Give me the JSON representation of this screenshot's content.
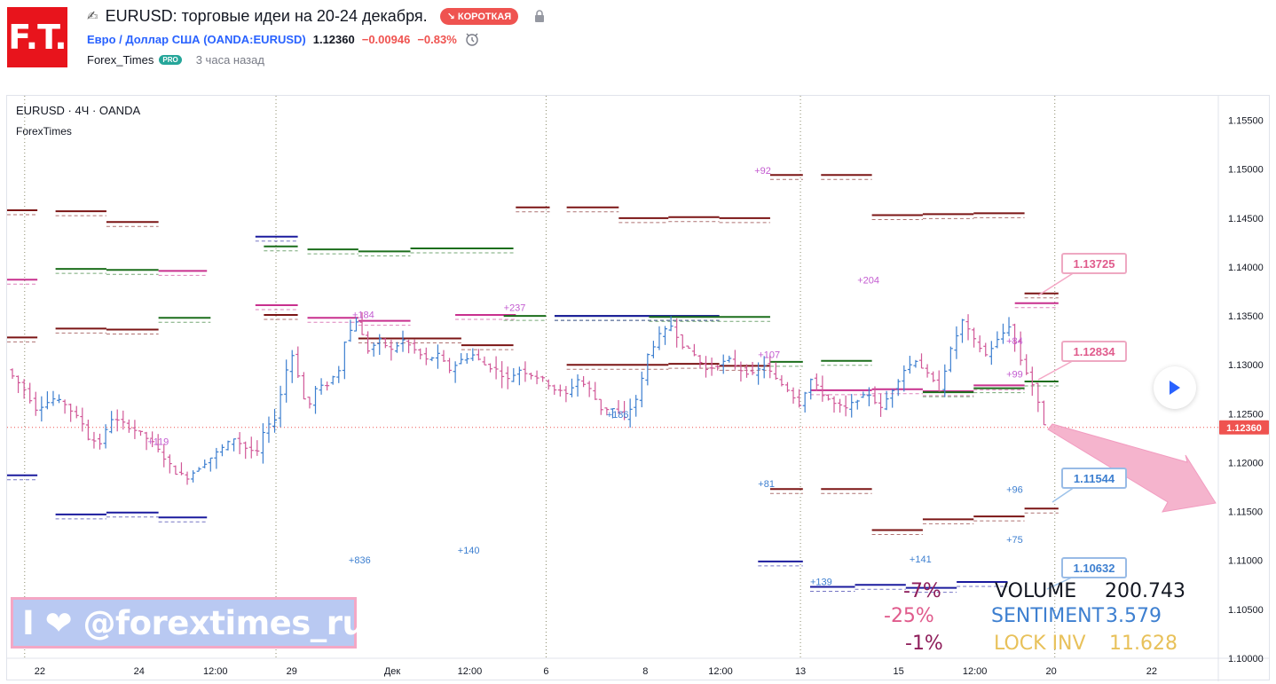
{
  "header": {
    "logo_text": "F.T.",
    "title": "EURUSD: торговые идеи на 20-24 декабря.",
    "badge": "↘ КОРОТКАЯ",
    "symbol_name": "Евро / Доллар США",
    "symbol_code": "(OANDA:EURUSD)",
    "price": "1.12360",
    "change": "−0.00946",
    "change_pct": "−0.83%",
    "author": "Forex_Times",
    "author_badge": "PRO",
    "time_ago": "3 часа назад"
  },
  "chart_header": {
    "symbol": "EURUSD · 4Ч · OANDA",
    "indicator": "ForexTimes"
  },
  "banner_text": "I ❤ @forextimes_ru",
  "stats": {
    "volume_pct": "-7%",
    "volume_label": "VOLUME",
    "volume_value": "200.743",
    "sentiment_pct": "-25%",
    "sentiment_label": "SENTIMENT",
    "sentiment_value": "3.579",
    "lock_pct": "-1%",
    "lock_label": "LOCK INV",
    "lock_value": "11.628"
  },
  "callouts": [
    {
      "text": "1.13725",
      "color": "#e05b8c"
    },
    {
      "text": "1.12834",
      "color": "#e05b8c"
    },
    {
      "text": "1.11544",
      "color": "#3d7fd0"
    },
    {
      "text": "1.10632",
      "color": "#3d7fd0"
    }
  ],
  "colors": {
    "up": "#3d7fd0",
    "down": "#d15898",
    "level_darkred": "#7b1515",
    "level_green": "#1b6e1b",
    "level_navy": "#1b1b9e",
    "level_pink": "#c8308e",
    "arrow": "#f4a7c5",
    "price_tag": "#ef5350"
  },
  "chart_data": {
    "type": "ohlc",
    "symbol": "EURUSD",
    "timeframe": "4Ч",
    "ylim": [
      1.1,
      1.1575
    ],
    "y_ticks": [
      "1.15500",
      "1.15000",
      "1.14500",
      "1.14000",
      "1.13500",
      "1.13000",
      "1.12500",
      "1.12000",
      "1.11500",
      "1.11000",
      "1.10500",
      "1.10000"
    ],
    "x_ticks": [
      "22",
      "24",
      "12:00",
      "29",
      "Дек",
      "12:00",
      "6",
      "8",
      "12:00",
      "13",
      "15",
      "12:00",
      "20",
      "22"
    ],
    "current_price": 1.1236,
    "current_price_label": "1.12360",
    "price_path": [
      [
        0,
        1.1295
      ],
      [
        3,
        1.1275
      ],
      [
        5,
        1.1255
      ],
      [
        8,
        1.1265
      ],
      [
        10,
        1.126
      ],
      [
        13,
        1.124
      ],
      [
        14,
        1.1225
      ],
      [
        16,
        1.122
      ],
      [
        18,
        1.1245
      ],
      [
        20,
        1.124
      ],
      [
        23,
        1.123
      ],
      [
        25,
        1.122
      ],
      [
        27,
        1.1205
      ],
      [
        29,
        1.119
      ],
      [
        31,
        1.1185
      ],
      [
        33,
        1.1195
      ],
      [
        35,
        1.1205
      ],
      [
        37,
        1.1215
      ],
      [
        39,
        1.1225
      ],
      [
        41,
        1.1215
      ],
      [
        43,
        1.121
      ],
      [
        44,
        1.123
      ],
      [
        46,
        1.1245
      ],
      [
        47,
        1.127
      ],
      [
        48,
        1.1295
      ],
      [
        49,
        1.131
      ],
      [
        50,
        1.129
      ],
      [
        51,
        1.1265
      ],
      [
        52,
        1.126
      ],
      [
        53,
        1.1275
      ],
      [
        55,
        1.128
      ],
      [
        57,
        1.1295
      ],
      [
        58,
        1.1325
      ],
      [
        59,
        1.1335
      ],
      [
        60,
        1.1345
      ],
      [
        61,
        1.133
      ],
      [
        62,
        1.1315
      ],
      [
        64,
        1.1325
      ],
      [
        66,
        1.1315
      ],
      [
        68,
        1.1325
      ],
      [
        70,
        1.1315
      ],
      [
        72,
        1.1305
      ],
      [
        74,
        1.131
      ],
      [
        76,
        1.1295
      ],
      [
        78,
        1.1305
      ],
      [
        80,
        1.131
      ],
      [
        82,
        1.13
      ],
      [
        84,
        1.1295
      ],
      [
        86,
        1.1285
      ],
      [
        88,
        1.1295
      ],
      [
        90,
        1.129
      ],
      [
        92,
        1.1285
      ],
      [
        94,
        1.1275
      ],
      [
        96,
        1.127
      ],
      [
        98,
        1.1285
      ],
      [
        100,
        1.1275
      ],
      [
        102,
        1.1255
      ],
      [
        104,
        1.1255
      ],
      [
        106,
        1.1245
      ],
      [
        108,
        1.1265
      ],
      [
        109,
        1.1285
      ],
      [
        110,
        1.131
      ],
      [
        112,
        1.133
      ],
      [
        114,
        1.134
      ],
      [
        116,
        1.132
      ],
      [
        118,
        1.131
      ],
      [
        120,
        1.1295
      ],
      [
        122,
        1.13
      ],
      [
        124,
        1.1305
      ],
      [
        126,
        1.1295
      ],
      [
        128,
        1.129
      ],
      [
        130,
        1.13
      ],
      [
        132,
        1.1285
      ],
      [
        134,
        1.1275
      ],
      [
        136,
        1.126
      ],
      [
        138,
        1.1285
      ],
      [
        140,
        1.127
      ],
      [
        142,
        1.126
      ],
      [
        144,
        1.1255
      ],
      [
        146,
        1.1265
      ],
      [
        148,
        1.127
      ],
      [
        150,
        1.1255
      ],
      [
        152,
        1.1275
      ],
      [
        154,
        1.1295
      ],
      [
        156,
        1.1305
      ],
      [
        158,
        1.129
      ],
      [
        160,
        1.1275
      ],
      [
        162,
        1.1315
      ],
      [
        164,
        1.1345
      ],
      [
        166,
        1.1325
      ],
      [
        168,
        1.131
      ],
      [
        170,
        1.1325
      ],
      [
        172,
        1.134
      ],
      [
        174,
        1.1305
      ],
      [
        176,
        1.128
      ],
      [
        178,
        1.124
      ]
    ],
    "annotations": [
      {
        "text": "+92",
        "x": 0.617,
        "y": 1.1495,
        "color": "#c35bd0"
      },
      {
        "text": "+204",
        "x": 0.702,
        "y": 1.1383,
        "color": "#c35bd0"
      },
      {
        "text": "+184",
        "x": 0.285,
        "y": 1.1348,
        "color": "#c35bd0"
      },
      {
        "text": "+237",
        "x": 0.41,
        "y": 1.1355,
        "color": "#c35bd0"
      },
      {
        "text": "+107",
        "x": 0.62,
        "y": 1.1307,
        "color": "#c35bd0"
      },
      {
        "text": "+84",
        "x": 0.825,
        "y": 1.1321,
        "color": "#c35bd0"
      },
      {
        "text": "+99",
        "x": 0.825,
        "y": 1.1287,
        "color": "#c35bd0"
      },
      {
        "text": "+119",
        "x": 0.116,
        "y": 1.1218,
        "color": "#c35bd0"
      },
      {
        "text": "+186",
        "x": 0.495,
        "y": 1.1246,
        "color": "#3d7fd0"
      },
      {
        "text": "+81",
        "x": 0.62,
        "y": 1.1175,
        "color": "#3d7fd0"
      },
      {
        "text": "+96",
        "x": 0.825,
        "y": 1.1169,
        "color": "#3d7fd0"
      },
      {
        "text": "+75",
        "x": 0.825,
        "y": 1.1118,
        "color": "#3d7fd0"
      },
      {
        "text": "+836",
        "x": 0.282,
        "y": 1.1097,
        "color": "#3d7fd0"
      },
      {
        "text": "+140",
        "x": 0.372,
        "y": 1.1107,
        "color": "#3d7fd0"
      },
      {
        "text": "+141",
        "x": 0.745,
        "y": 1.1098,
        "color": "#3d7fd0"
      },
      {
        "text": "+139",
        "x": 0.663,
        "y": 1.1075,
        "color": "#3d7fd0"
      }
    ],
    "levels": [
      {
        "x1": 0.0,
        "x2": 0.025,
        "y": 1.1458,
        "color": "darkred"
      },
      {
        "x1": 0.04,
        "x2": 0.082,
        "y": 1.1457,
        "color": "darkred"
      },
      {
        "x1": 0.082,
        "x2": 0.125,
        "y": 1.1446,
        "color": "darkred"
      },
      {
        "x1": 0.42,
        "x2": 0.448,
        "y": 1.1461,
        "color": "darkred"
      },
      {
        "x1": 0.462,
        "x2": 0.505,
        "y": 1.1461,
        "color": "darkred"
      },
      {
        "x1": 0.505,
        "x2": 0.546,
        "y": 1.145,
        "color": "darkred"
      },
      {
        "x1": 0.546,
        "x2": 0.588,
        "y": 1.1451,
        "color": "darkred"
      },
      {
        "x1": 0.588,
        "x2": 0.63,
        "y": 1.145,
        "color": "darkred"
      },
      {
        "x1": 0.63,
        "x2": 0.657,
        "y": 1.1494,
        "color": "darkred"
      },
      {
        "x1": 0.672,
        "x2": 0.714,
        "y": 1.1494,
        "color": "darkred"
      },
      {
        "x1": 0.714,
        "x2": 0.756,
        "y": 1.1453,
        "color": "darkred"
      },
      {
        "x1": 0.756,
        "x2": 0.798,
        "y": 1.1454,
        "color": "darkred"
      },
      {
        "x1": 0.798,
        "x2": 0.84,
        "y": 1.1455,
        "color": "darkred"
      },
      {
        "x1": 0.0,
        "x2": 0.025,
        "y": 1.1387,
        "color": "pink"
      },
      {
        "x1": 0.04,
        "x2": 0.082,
        "y": 1.1398,
        "color": "green"
      },
      {
        "x1": 0.082,
        "x2": 0.125,
        "y": 1.1397,
        "color": "green"
      },
      {
        "x1": 0.125,
        "x2": 0.165,
        "y": 1.1396,
        "color": "pink"
      },
      {
        "x1": 0.205,
        "x2": 0.24,
        "y": 1.1431,
        "color": "navy"
      },
      {
        "x1": 0.212,
        "x2": 0.24,
        "y": 1.1421,
        "color": "green"
      },
      {
        "x1": 0.248,
        "x2": 0.29,
        "y": 1.1418,
        "color": "green"
      },
      {
        "x1": 0.29,
        "x2": 0.333,
        "y": 1.1416,
        "color": "green"
      },
      {
        "x1": 0.333,
        "x2": 0.418,
        "y": 1.1419,
        "color": "green"
      },
      {
        "x1": 0.205,
        "x2": 0.24,
        "y": 1.1361,
        "color": "pink"
      },
      {
        "x1": 0.212,
        "x2": 0.24,
        "y": 1.1351,
        "color": "darkred"
      },
      {
        "x1": 0.125,
        "x2": 0.168,
        "y": 1.1348,
        "color": "green"
      },
      {
        "x1": 0.04,
        "x2": 0.082,
        "y": 1.1337,
        "color": "darkred"
      },
      {
        "x1": 0.082,
        "x2": 0.125,
        "y": 1.1336,
        "color": "darkred"
      },
      {
        "x1": 0.0,
        "x2": 0.025,
        "y": 1.1328,
        "color": "darkred"
      },
      {
        "x1": 0.248,
        "x2": 0.29,
        "y": 1.1348,
        "color": "pink"
      },
      {
        "x1": 0.29,
        "x2": 0.333,
        "y": 1.1345,
        "color": "pink"
      },
      {
        "x1": 0.37,
        "x2": 0.42,
        "y": 1.1351,
        "color": "pink"
      },
      {
        "x1": 0.41,
        "x2": 0.445,
        "y": 1.135,
        "color": "green"
      },
      {
        "x1": 0.452,
        "x2": 0.588,
        "y": 1.135,
        "color": "green"
      },
      {
        "x1": 0.452,
        "x2": 0.588,
        "y": 1.135,
        "color": "navy"
      },
      {
        "x1": 0.53,
        "x2": 0.63,
        "y": 1.1349,
        "color": "green"
      },
      {
        "x1": 0.29,
        "x2": 0.375,
        "y": 1.1327,
        "color": "darkred"
      },
      {
        "x1": 0.375,
        "x2": 0.418,
        "y": 1.132,
        "color": "darkred"
      },
      {
        "x1": 0.462,
        "x2": 0.546,
        "y": 1.13,
        "color": "darkred"
      },
      {
        "x1": 0.546,
        "x2": 0.588,
        "y": 1.1301,
        "color": "darkred"
      },
      {
        "x1": 0.588,
        "x2": 0.63,
        "y": 1.1299,
        "color": "darkred"
      },
      {
        "x1": 0.63,
        "x2": 0.657,
        "y": 1.1303,
        "color": "green"
      },
      {
        "x1": 0.672,
        "x2": 0.714,
        "y": 1.1304,
        "color": "green"
      },
      {
        "x1": 0.663,
        "x2": 0.714,
        "y": 1.1274,
        "color": "pink"
      },
      {
        "x1": 0.714,
        "x2": 0.756,
        "y": 1.1275,
        "color": "pink"
      },
      {
        "x1": 0.756,
        "x2": 0.798,
        "y": 1.1273,
        "color": "pink"
      },
      {
        "x1": 0.756,
        "x2": 0.798,
        "y": 1.1272,
        "color": "green"
      },
      {
        "x1": 0.798,
        "x2": 0.84,
        "y": 1.1276,
        "color": "green"
      },
      {
        "x1": 0.798,
        "x2": 0.84,
        "y": 1.1279,
        "color": "pink"
      },
      {
        "x1": 0.84,
        "x2": 0.868,
        "y": 1.1283,
        "color": "green"
      },
      {
        "x1": 0.832,
        "x2": 0.868,
        "y": 1.1363,
        "color": "pink"
      },
      {
        "x1": 0.84,
        "x2": 0.868,
        "y": 1.1373,
        "color": "darkred"
      },
      {
        "x1": 0.63,
        "x2": 0.657,
        "y": 1.1173,
        "color": "darkred"
      },
      {
        "x1": 0.672,
        "x2": 0.714,
        "y": 1.1173,
        "color": "darkred"
      },
      {
        "x1": 0.714,
        "x2": 0.756,
        "y": 1.1131,
        "color": "darkred"
      },
      {
        "x1": 0.756,
        "x2": 0.798,
        "y": 1.1142,
        "color": "darkred"
      },
      {
        "x1": 0.798,
        "x2": 0.84,
        "y": 1.1145,
        "color": "darkred"
      },
      {
        "x1": 0.84,
        "x2": 0.868,
        "y": 1.1153,
        "color": "darkred"
      },
      {
        "x1": 0.0,
        "x2": 0.025,
        "y": 1.1187,
        "color": "navy"
      },
      {
        "x1": 0.04,
        "x2": 0.082,
        "y": 1.1147,
        "color": "navy"
      },
      {
        "x1": 0.082,
        "x2": 0.125,
        "y": 1.1149,
        "color": "navy"
      },
      {
        "x1": 0.125,
        "x2": 0.165,
        "y": 1.1144,
        "color": "navy"
      },
      {
        "x1": 0.62,
        "x2": 0.657,
        "y": 1.1099,
        "color": "navy"
      },
      {
        "x1": 0.663,
        "x2": 0.7,
        "y": 1.1073,
        "color": "navy"
      },
      {
        "x1": 0.7,
        "x2": 0.742,
        "y": 1.1075,
        "color": "navy"
      },
      {
        "x1": 0.742,
        "x2": 0.784,
        "y": 1.1072,
        "color": "navy"
      },
      {
        "x1": 0.784,
        "x2": 0.826,
        "y": 1.1078,
        "color": "navy"
      }
    ]
  }
}
